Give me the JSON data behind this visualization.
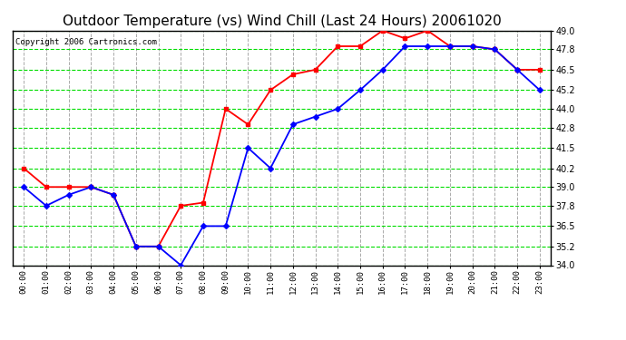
{
  "title": "Outdoor Temperature (vs) Wind Chill (Last 24 Hours) 20061020",
  "copyright": "Copyright 2006 Cartronics.com",
  "x_labels": [
    "00:00",
    "01:00",
    "02:00",
    "03:00",
    "04:00",
    "05:00",
    "06:00",
    "07:00",
    "08:00",
    "09:00",
    "10:00",
    "11:00",
    "12:00",
    "13:00",
    "14:00",
    "15:00",
    "16:00",
    "17:00",
    "18:00",
    "19:00",
    "20:00",
    "21:00",
    "22:00",
    "23:00"
  ],
  "temp_red": [
    40.2,
    39.0,
    39.0,
    39.0,
    38.5,
    35.2,
    35.2,
    37.8,
    38.0,
    44.0,
    43.0,
    45.2,
    46.2,
    46.5,
    48.0,
    48.0,
    49.0,
    48.5,
    49.0,
    48.0,
    48.0,
    47.8,
    46.5,
    46.5
  ],
  "wind_blue": [
    39.0,
    37.8,
    38.5,
    39.0,
    38.5,
    35.2,
    35.2,
    34.0,
    36.5,
    36.5,
    41.5,
    40.2,
    43.0,
    43.5,
    44.0,
    45.2,
    46.5,
    48.0,
    48.0,
    48.0,
    48.0,
    47.8,
    46.5,
    45.2
  ],
  "ylim": [
    34.0,
    49.0
  ],
  "yticks": [
    34.0,
    35.2,
    36.5,
    37.8,
    39.0,
    40.2,
    41.5,
    42.8,
    44.0,
    45.2,
    46.5,
    47.8,
    49.0
  ],
  "bg_color": "#ffffff",
  "plot_bg": "#ffffff",
  "grid_h_color": "#00dd00",
  "grid_v_color": "#aaaaaa",
  "line_color_red": "#ff0000",
  "line_color_blue": "#0000ff",
  "border_color": "#000000",
  "title_fontsize": 11,
  "copyright_fontsize": 6.5
}
